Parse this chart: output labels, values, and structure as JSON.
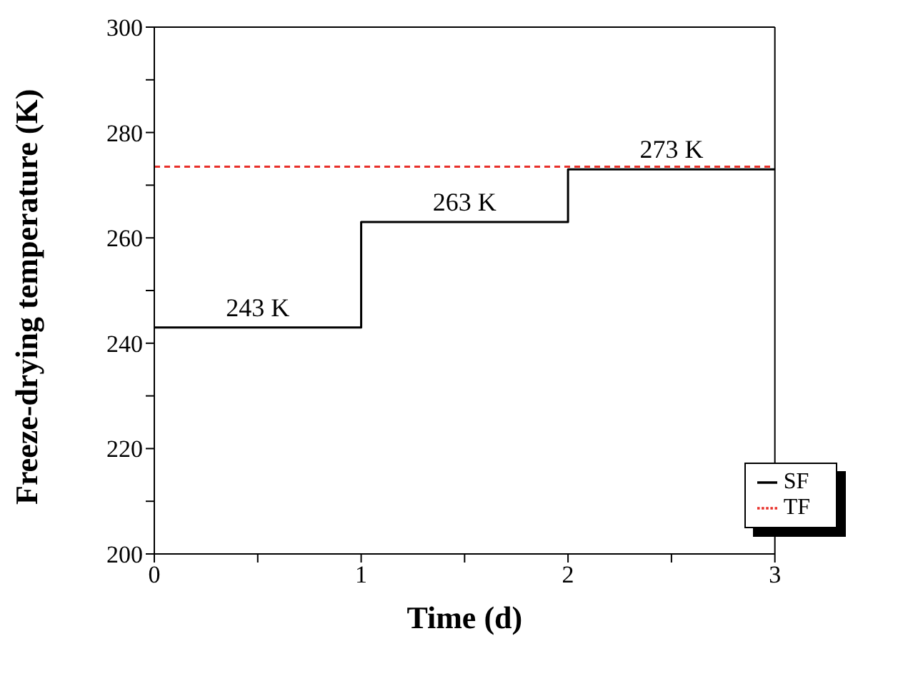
{
  "chart_data": {
    "type": "step",
    "xlabel": "Time (d)",
    "ylabel": "Freeze-drying temperature (K)",
    "x": [
      0,
      1,
      2,
      3
    ],
    "xlim": [
      0,
      3
    ],
    "ylim": [
      200,
      300
    ],
    "xticks": [
      0,
      {
        "value": 0.5,
        "label": null
      },
      1,
      {
        "value": 1.5,
        "label": null
      },
      2,
      {
        "value": 2.5,
        "label": null
      },
      3
    ],
    "yticks": [
      200,
      {
        "value": 210,
        "label": null
      },
      220,
      {
        "value": 230,
        "label": null
      },
      240,
      {
        "value": 250,
        "label": null
      },
      260,
      {
        "value": 270,
        "label": null
      },
      280,
      {
        "value": 290,
        "label": null
      },
      300
    ],
    "series": [
      {
        "name": "SF",
        "type": "step",
        "color": "#000000",
        "line_style": "solid",
        "values": [
          243,
          263,
          273,
          273
        ]
      },
      {
        "name": "TF",
        "type": "line",
        "color": "#e8302a",
        "line_style": "dashed",
        "x": [
          0,
          3
        ],
        "values": [
          273.5,
          273.5
        ]
      }
    ],
    "annotations": [
      {
        "text": "243 K",
        "x": 0.5,
        "y": 243
      },
      {
        "text": "263 K",
        "x": 1.5,
        "y": 263
      },
      {
        "text": "273 K",
        "x": 2.5,
        "y": 273
      }
    ],
    "legend": "bottom right",
    "grid": false,
    "marker": "none"
  }
}
